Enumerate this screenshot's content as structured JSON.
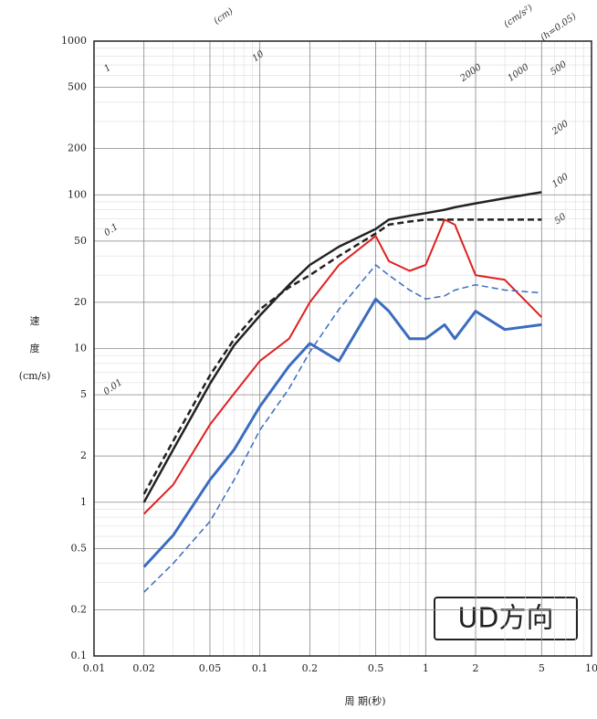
{
  "chart_data": {
    "type": "line",
    "x_label": "周 期(秒)",
    "y_label_lines": [
      "速",
      "度",
      "(cm/s)"
    ],
    "annotation": "UD方向",
    "tripartite_labels": [
      "(cm)",
      "(cm/s²)",
      "(h=0.05)",
      "10",
      "1",
      "0.1",
      "0.01",
      "2000",
      "1000",
      "500",
      "200",
      "100",
      "50"
    ],
    "log_x": true,
    "log_y": true,
    "grid": true,
    "xlim": [
      0.01,
      10
    ],
    "ylim": [
      0.1,
      1000
    ],
    "xticks": [
      0.01,
      0.02,
      0.05,
      0.1,
      0.2,
      0.5,
      1,
      2,
      5,
      10
    ],
    "yticks": [
      0.1,
      0.2,
      0.5,
      1,
      2,
      5,
      10,
      20,
      50,
      100,
      200,
      500,
      1000
    ],
    "x": [
      0.02,
      0.03,
      0.05,
      0.07,
      0.1,
      0.15,
      0.2,
      0.3,
      0.5,
      0.6,
      0.8,
      1,
      1.3,
      1.5,
      2,
      3,
      5
    ],
    "series": [
      {
        "color": "#222222",
        "dashed": false,
        "width": 2.5,
        "values": [
          1.0,
          2.2,
          5.9,
          10.5,
          16.4,
          26,
          35,
          46,
          60,
          69,
          73,
          76,
          80,
          83,
          88,
          95,
          104
        ]
      },
      {
        "color": "#222222",
        "dashed": true,
        "width": 2.5,
        "values": [
          1.13,
          2.5,
          6.7,
          11.5,
          18,
          25,
          30,
          40,
          56,
          64,
          67,
          69,
          69,
          69,
          69,
          69,
          69
        ]
      },
      {
        "color": "#e02020",
        "dashed": false,
        "width": 2,
        "values": [
          0.84,
          1.3,
          3.2,
          5.1,
          8.3,
          11.6,
          20,
          35,
          54,
          37,
          32,
          35,
          69,
          64,
          30,
          28,
          16
        ]
      },
      {
        "color": "#3a6cc0",
        "dashed": false,
        "width": 3,
        "values": [
          0.38,
          0.61,
          1.4,
          2.2,
          4.2,
          7.7,
          10.8,
          8.3,
          21,
          17.5,
          11.6,
          11.6,
          14.3,
          11.6,
          17.5,
          13.3,
          14.3
        ]
      },
      {
        "color": "#3a6cc0",
        "dashed": true,
        "width": 1.5,
        "values": [
          0.26,
          0.4,
          0.75,
          1.4,
          2.95,
          5.5,
          9.5,
          18,
          35,
          30,
          24,
          21,
          22,
          24,
          26,
          24,
          23
        ]
      }
    ]
  }
}
